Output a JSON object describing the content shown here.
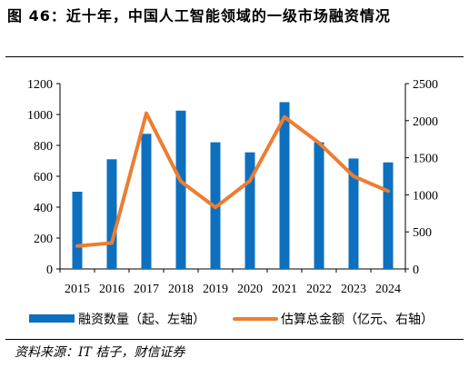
{
  "header": {
    "title": "图 46：近十年，中国人工智能领域的一级市场融资情况"
  },
  "footer": {
    "source": "资料来源：IT 桔子，财信证券"
  },
  "colors": {
    "bar": "#0d70bf",
    "line": "#ed7d31"
  },
  "chart_data": {
    "type": "bar",
    "categories": [
      "2015",
      "2016",
      "2017",
      "2018",
      "2019",
      "2020",
      "2021",
      "2022",
      "2023",
      "2024"
    ],
    "series": [
      {
        "name": "融资数量（起、左轴）",
        "type": "bar",
        "axis": "left",
        "values": [
          500,
          710,
          875,
          1025,
          820,
          755,
          1080,
          820,
          715,
          690
        ]
      },
      {
        "name": "估算总金额（亿元、右轴）",
        "type": "line",
        "axis": "right",
        "values": [
          310,
          350,
          2100,
          1180,
          830,
          1190,
          2050,
          1700,
          1250,
          1050
        ]
      }
    ],
    "y_left": {
      "min": 0,
      "max": 1200,
      "ticks": [
        "0",
        "200",
        "400",
        "600",
        "800",
        "1000",
        "1200"
      ]
    },
    "y_right": {
      "min": 0,
      "max": 2500,
      "ticks": [
        "0",
        "500",
        "1000",
        "1500",
        "2000",
        "2500"
      ]
    },
    "grid": false,
    "legend": "bottom"
  }
}
